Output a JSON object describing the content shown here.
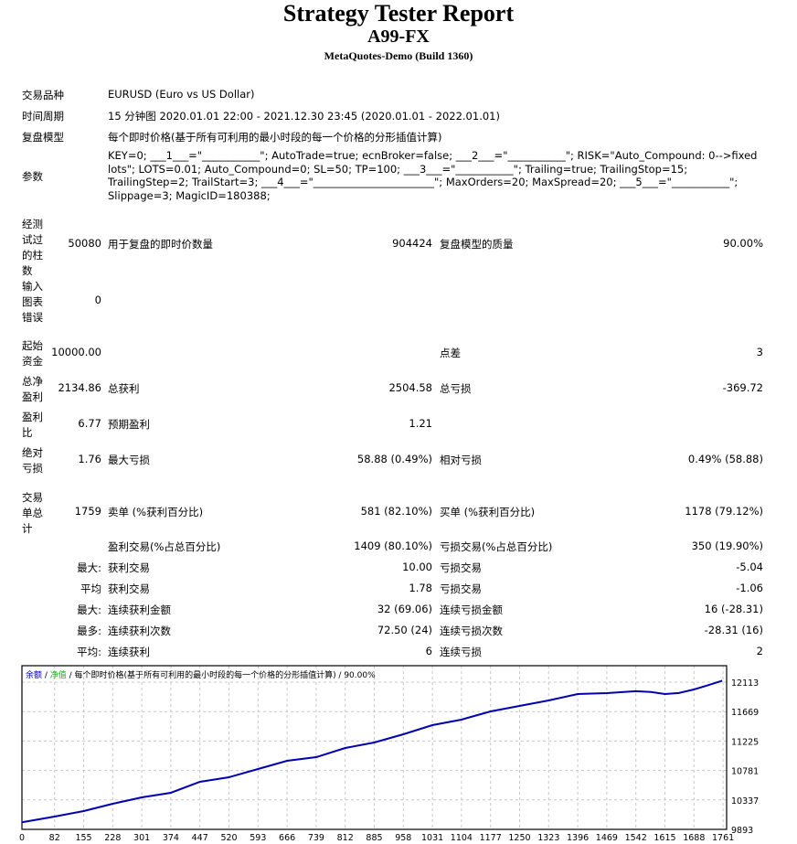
{
  "header": {
    "title": "Strategy Tester Report",
    "subtitle": "A99-FX",
    "build": "MetaQuotes-Demo (Build 1360)"
  },
  "info": {
    "symbol_label": "交易品种",
    "symbol": "EURUSD (Euro vs US Dollar)",
    "period_label": "时间周期",
    "period": "15 分钟图 2020.01.01 22:00 - 2021.12.30 23:45 (2020.01.01 - 2022.01.01)",
    "model_label": "复盘模型",
    "model": "每个即时价格(基于所有可利用的最小时段的每一个价格的分形插值计算)",
    "params_label": "参数",
    "params": "KEY=0; ___1___=\"___________\"; AutoTrade=true; ecnBroker=false; ___2___=\"___________\"; RISK=\"Auto_Compound: 0-->fixed lots\"; LOTS=0.01; Auto_Compound=0; SL=50; TP=100; ___3___=\"___________\"; Trailing=true; TrailingStop=15; TrailingStep=2; TrailStart=3; ___4___=\"_______________________\"; MaxOrders=20; MaxSpread=20; ___5___=\"___________\"; Slippage=3; MagicID=180388;"
  },
  "stats": [
    {
      "label": "经测试过的柱数",
      "v1": "50080",
      "l2": "用于复盘的即时价数量",
      "v2": "904424",
      "l3": "复盘模型的质量",
      "v3": "90.00%"
    },
    {
      "label": "输入图表错误",
      "v1": "0",
      "l2": "",
      "v2": "",
      "l3": "",
      "v3": ""
    },
    {
      "label": "起始资金",
      "v1": "10000.00",
      "l2": "",
      "v2": "",
      "l3": "点差",
      "v3": "3"
    },
    {
      "label": "总净盈利",
      "v1": "2134.86",
      "l2": "总获利",
      "v2": "2504.58",
      "l3": "总亏损",
      "v3": "-369.72"
    },
    {
      "label": "盈利比",
      "v1": "6.77",
      "l2": "预期盈利",
      "v2": "1.21",
      "l3": "",
      "v3": ""
    },
    {
      "label": "绝对亏损",
      "v1": "1.76",
      "l2": "最大亏损",
      "v2": "58.88 (0.49%)",
      "l3": "相对亏损",
      "v3": "0.49% (58.88)"
    },
    {
      "label": "交易单总计",
      "v1": "1759",
      "l2": "卖单 (%获利百分比)",
      "v2": "581 (82.10%)",
      "l3": "买单 (%获利百分比)",
      "v3": "1178 (79.12%)"
    },
    {
      "label": "",
      "v1": "",
      "l2": "盈利交易(%占总百分比)",
      "v2": "1409 (80.10%)",
      "l3": "亏损交易(%占总百分比)",
      "v3": "350 (19.90%)"
    },
    {
      "label": "",
      "v1": "最大:",
      "l2": "获利交易",
      "v2": "10.00",
      "l3": "亏损交易",
      "v3": "-5.04"
    },
    {
      "label": "",
      "v1": "平均",
      "l2": "获利交易",
      "v2": "1.78",
      "l3": "亏损交易",
      "v3": "-1.06"
    },
    {
      "label": "",
      "v1": "最大:",
      "l2": "连续获利金额",
      "v2": "32 (69.06)",
      "l3": "连续亏损金额",
      "v3": "16 (-28.31)"
    },
    {
      "label": "",
      "v1": "最多:",
      "l2": "连续获利次数",
      "v2": "72.50 (24)",
      "l3": "连续亏损次数",
      "v3": "-28.31 (16)"
    },
    {
      "label": "",
      "v1": "平均:",
      "l2": "连续获利",
      "v2": "6",
      "l3": "连续亏损",
      "v3": "2"
    }
  ],
  "chart_data": {
    "type": "line",
    "legend": {
      "balance": "余额",
      "sep1": " / ",
      "equity": "净值",
      "rest": " / 每个即时价格(基于所有可利用的最小时段的每一个价格的分形插值计算) / 90.00%"
    },
    "colors": {
      "balance": "#0000b0",
      "equity": "#00c000",
      "grid": "#c8c8c8"
    },
    "x_ticks": [
      0,
      82,
      155,
      228,
      301,
      374,
      447,
      520,
      593,
      666,
      739,
      812,
      885,
      958,
      1031,
      1104,
      1177,
      1250,
      1323,
      1396,
      1469,
      1542,
      1615,
      1688,
      1761
    ],
    "y_ticks": [
      9893,
      10337,
      10781,
      11225,
      11669,
      12113
    ],
    "xlim": [
      0,
      1770
    ],
    "ylim": [
      9893,
      12335
    ],
    "grid": true,
    "series": [
      {
        "x": [
          0,
          82,
          155,
          228,
          301,
          374,
          447,
          520,
          593,
          666,
          739,
          812,
          885,
          958,
          1031,
          1104,
          1177,
          1250,
          1323,
          1396,
          1469,
          1542,
          1580,
          1615,
          1650,
          1688,
          1720,
          1759
        ],
        "y": [
          10000,
          10086,
          10169,
          10279,
          10376,
          10445,
          10610,
          10679,
          10803,
          10927,
          10982,
          11120,
          11203,
          11327,
          11465,
          11548,
          11672,
          11755,
          11837,
          11934,
          11948,
          11976,
          11965,
          11934,
          11950,
          12003,
          12060,
          12134
        ]
      }
    ]
  }
}
